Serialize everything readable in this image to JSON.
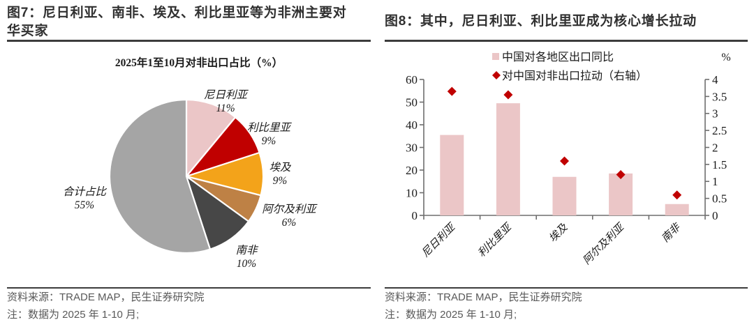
{
  "figure7": {
    "title": "图7：尼日利亚、南非、埃及、利比里亚等为非洲主要对华买家",
    "source": "资料来源：TRADE MAP，民生证券研究院",
    "note": "注：数据为 2025 年 1-10 月;"
  },
  "figure8": {
    "title": "图8：其中，尼日利亚、利比里亚成为核心增长拉动",
    "source": "资料来源：TRADE MAP，民生证券研究院",
    "note": "注：数据为 2025 年 1-10 月;"
  },
  "colors": {
    "pink": "#EBC6C7",
    "dark_red": "#C00000",
    "orange": "#F3A31A",
    "brown": "#BE8145",
    "dark_gray": "#474747",
    "light_gray": "#A5A5A5",
    "axis": "#6e6e6e",
    "chart_text": "#1a1a1a"
  },
  "chart_data": [
    {
      "type": "pie",
      "title": "2025年1至10月对非出口占比（%）",
      "start_angle_deg": 0,
      "direction": "clockwise",
      "slices": [
        {
          "label": "尼日利亚",
          "value": 11,
          "display": "11%",
          "color": "#EBC6C7"
        },
        {
          "label": "利比里亚",
          "value": 9,
          "display": "9%",
          "color": "#C00000"
        },
        {
          "label": "埃及",
          "value": 9,
          "display": "9%",
          "color": "#F3A31A"
        },
        {
          "label": "阿尔及利亚",
          "value": 6,
          "display": "6%",
          "color": "#BE8145"
        },
        {
          "label": "南非",
          "value": 10,
          "display": "10%",
          "color": "#474747"
        },
        {
          "label": "合计占比",
          "value": 55,
          "display": "55%",
          "color": "#A5A5A5"
        }
      ]
    },
    {
      "type": "bar+scatter",
      "categories": [
        "尼日利亚",
        "利比里亚",
        "埃及",
        "阿尔及利亚",
        "南非"
      ],
      "series": [
        {
          "name": "中国对各地区出口同比",
          "type": "bar",
          "axis": "left",
          "color": "#EBC6C7",
          "values": [
            35.5,
            49.5,
            17,
            18.5,
            5
          ]
        },
        {
          "name": "对中国对非出口拉动（右轴）",
          "type": "diamond",
          "axis": "right",
          "color": "#C00000",
          "values": [
            3.65,
            3.55,
            1.6,
            1.2,
            0.6
          ]
        }
      ],
      "left_axis": {
        "min": 0,
        "max": 60,
        "step": 10
      },
      "right_axis": {
        "min": 0,
        "max": 4,
        "step": 0.5,
        "unit": "%"
      },
      "legend_position": "top",
      "grid": false
    }
  ]
}
